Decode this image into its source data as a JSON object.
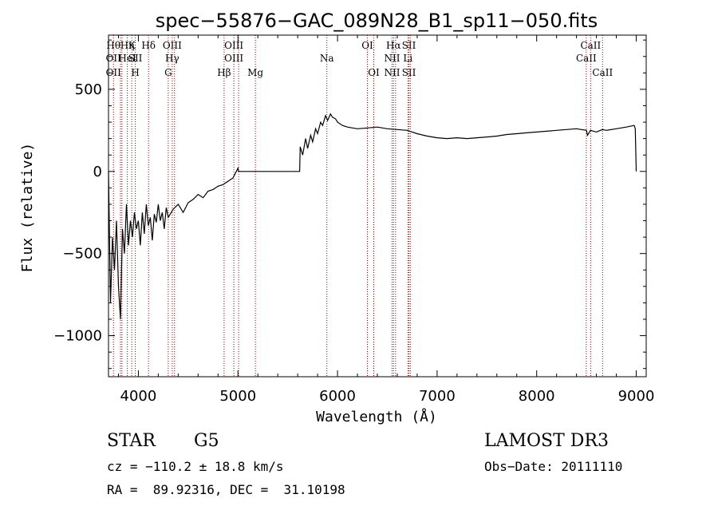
{
  "chart_data": {
    "type": "line",
    "title": "spec−55876−GAC_089N28_B1_sp11−050.fits",
    "xlabel": "Wavelength (Å)",
    "ylabel": "Flux (relative)",
    "xlim": [
      3700,
      9100
    ],
    "ylim": [
      -1250,
      830
    ],
    "xticks": [
      4000,
      5000,
      6000,
      7000,
      8000,
      9000
    ],
    "xtick_labels": [
      "4000",
      "5000",
      "6000",
      "7000",
      "8000",
      "9000"
    ],
    "yticks": [
      -1000,
      -500,
      0,
      500
    ],
    "ytick_labels": [
      "−1000",
      "−500",
      "0",
      "500"
    ],
    "grid": false,
    "series": [
      {
        "x": [
          3700,
          3720,
          3740,
          3760,
          3780,
          3800,
          3820,
          3840,
          3860,
          3880,
          3900,
          3920,
          3940,
          3960,
          3980,
          4000,
          4020,
          4040,
          4060,
          4080,
          4100,
          4120,
          4140,
          4160,
          4180,
          4200,
          4220,
          4240,
          4260,
          4280,
          4300,
          4350,
          4400,
          4450,
          4500,
          4550,
          4600,
          4650,
          4700,
          4750,
          4800,
          4850,
          4900,
          4950,
          5000,
          5005,
          5100,
          5300,
          5500,
          5620,
          5625,
          5650,
          5680,
          5700,
          5730,
          5750,
          5780,
          5800,
          5830,
          5850,
          5880,
          5900,
          5930,
          5950,
          5980,
          6000,
          6050,
          6100,
          6150,
          6200,
          6300,
          6400,
          6500,
          6600,
          6700,
          6800,
          6900,
          7000,
          7100,
          7200,
          7300,
          7400,
          7500,
          7600,
          7700,
          7800,
          7900,
          8000,
          8100,
          8200,
          8300,
          8400,
          8500,
          8510,
          8540,
          8600,
          8660,
          8700,
          8800,
          8900,
          8980,
          8990,
          9000
        ],
        "y": [
          0,
          -800,
          -400,
          -600,
          -300,
          -700,
          -900,
          -350,
          -500,
          -200,
          -450,
          -300,
          -400,
          -250,
          -350,
          -300,
          -450,
          -250,
          -380,
          -200,
          -330,
          -280,
          -420,
          -260,
          -310,
          -200,
          -300,
          -250,
          -350,
          -220,
          -280,
          -230,
          -200,
          -250,
          -190,
          -170,
          -140,
          -160,
          -120,
          -110,
          -90,
          -80,
          -60,
          -40,
          20,
          0,
          0,
          0,
          0,
          0,
          150,
          100,
          200,
          140,
          220,
          180,
          260,
          230,
          300,
          280,
          340,
          310,
          350,
          330,
          320,
          300,
          280,
          270,
          265,
          260,
          265,
          270,
          260,
          255,
          250,
          230,
          215,
          205,
          200,
          205,
          200,
          205,
          210,
          215,
          225,
          230,
          235,
          240,
          245,
          250,
          255,
          260,
          250,
          220,
          250,
          240,
          255,
          250,
          260,
          270,
          280,
          260,
          0
        ]
      }
    ],
    "lines": [
      {
        "x": 3750,
        "labels": [
          "Hθ",
          "OII",
          "OII"
        ]
      },
      {
        "x": 3820,
        "labels": [
          "",
          "",
          ""
        ]
      },
      {
        "x": 3835,
        "labels": [
          "",
          "",
          ""
        ]
      },
      {
        "x": 3889,
        "labels": [
          "Hη",
          "HeI",
          ""
        ]
      },
      {
        "x": 3934,
        "labels": [
          "K",
          "",
          ""
        ]
      },
      {
        "x": 3969,
        "labels": [
          "",
          "SII",
          "H"
        ]
      },
      {
        "x": 4102,
        "labels": [
          "Hδ",
          "",
          ""
        ]
      },
      {
        "x": 4300,
        "labels": [
          "",
          "",
          "G"
        ]
      },
      {
        "x": 4340,
        "labels": [
          "OIII",
          "Hγ",
          ""
        ]
      },
      {
        "x": 4363,
        "labels": [
          "",
          "",
          ""
        ]
      },
      {
        "x": 4861,
        "labels": [
          "",
          "",
          "Hβ"
        ]
      },
      {
        "x": 4959,
        "labels": [
          "OIII",
          "OIII",
          ""
        ]
      },
      {
        "x": 5007,
        "labels": [
          "",
          "",
          ""
        ]
      },
      {
        "x": 5175,
        "labels": [
          "",
          "",
          "Mg"
        ]
      },
      {
        "x": 5893,
        "labels": [
          "",
          "Na",
          ""
        ]
      },
      {
        "x": 6300,
        "labels": [
          "OI",
          "",
          ""
        ]
      },
      {
        "x": 6364,
        "labels": [
          "",
          "",
          "OI"
        ]
      },
      {
        "x": 6548,
        "labels": [
          "",
          "NII",
          "NII"
        ]
      },
      {
        "x": 6563,
        "labels": [
          "Hα",
          "",
          ""
        ]
      },
      {
        "x": 6583,
        "labels": [
          "",
          "",
          ""
        ]
      },
      {
        "x": 6707,
        "labels": [
          "",
          "Li",
          ""
        ]
      },
      {
        "x": 6717,
        "labels": [
          "SII",
          "",
          "SII"
        ]
      },
      {
        "x": 6731,
        "labels": [
          "",
          "",
          ""
        ]
      },
      {
        "x": 8498,
        "labels": [
          "",
          "CaII",
          ""
        ]
      },
      {
        "x": 8542,
        "labels": [
          "CaII",
          "",
          ""
        ]
      },
      {
        "x": 8662,
        "labels": [
          "",
          "",
          "CaII"
        ]
      }
    ]
  },
  "info": {
    "class": "STAR",
    "subclass": "G5",
    "survey": "LAMOST DR3",
    "cz": "cz = −110.2 ± 18.8 km/s",
    "obsdate": "Obs−Date: 20111110",
    "radec": "RA =  89.92316, DEC =  31.10198"
  }
}
